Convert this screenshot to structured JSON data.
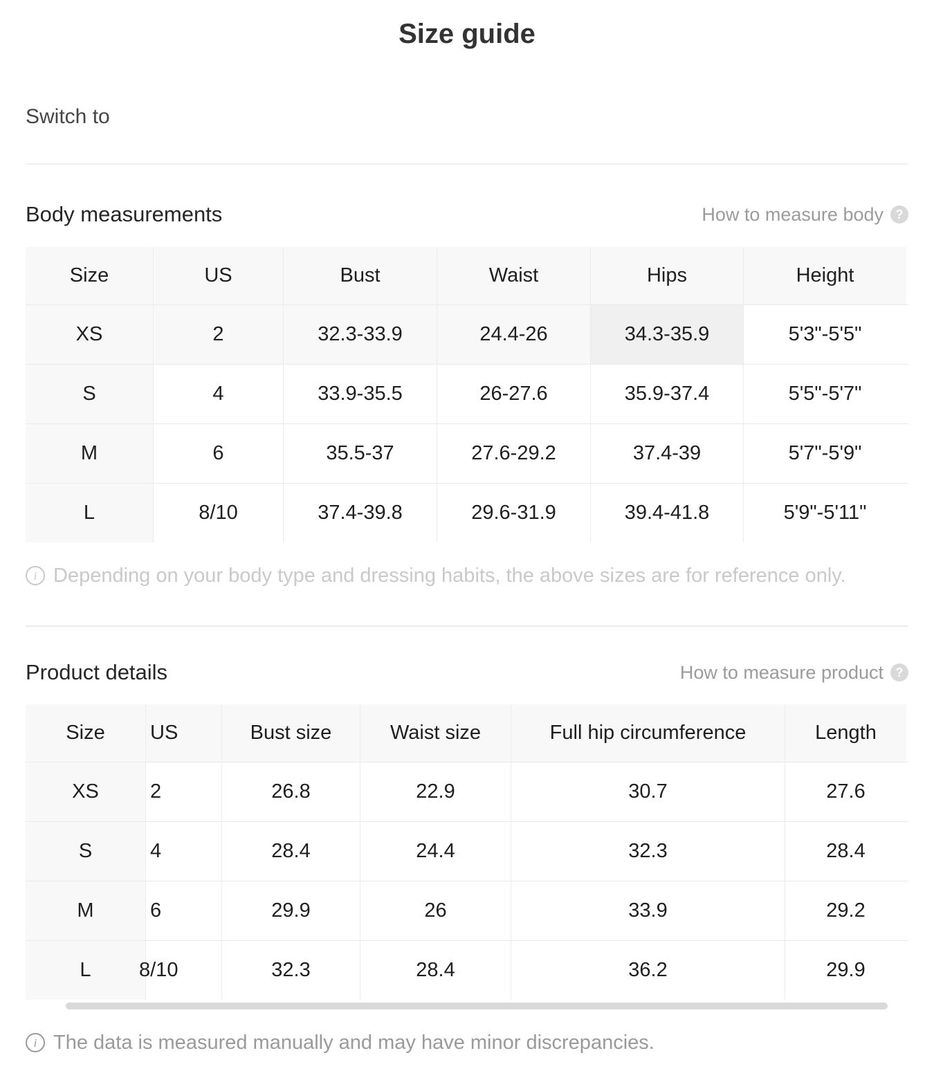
{
  "page": {
    "title": "Size guide",
    "switch_label": "Switch to"
  },
  "icons": {
    "help": "?",
    "info": "i"
  },
  "colors": {
    "row_highlight": "#f8f8f8",
    "cell_highlight": "#f0f0f0",
    "header_bg": "#f8f8f8",
    "scrollbar_thumb": "#d9d9d9",
    "help_text": "#9b9b9b",
    "note_light": "#c9c9c9",
    "note_dark": "#9a9a9a"
  },
  "body_section": {
    "title": "Body measurements",
    "help_label": "How to measure body",
    "table": {
      "columns": [
        "Size",
        "US",
        "Bust",
        "Waist",
        "Hips",
        "Height"
      ],
      "rows": [
        {
          "size": "XS",
          "us": "2",
          "bust": "32.3-33.9",
          "waist": "24.4-26",
          "hips": "34.3-35.9",
          "height": "5'3\"-5'5\""
        },
        {
          "size": "S",
          "us": "4",
          "bust": "33.9-35.5",
          "waist": "26-27.6",
          "hips": "35.9-37.4",
          "height": "5'5\"-5'7\""
        },
        {
          "size": "M",
          "us": "6",
          "bust": "35.5-37",
          "waist": "27.6-29.2",
          "hips": "37.4-39",
          "height": "5'7\"-5'9\""
        },
        {
          "size": "L",
          "us": "8/10",
          "bust": "37.4-39.8",
          "waist": "29.6-31.9",
          "hips": "39.4-41.8",
          "height": "5'9\"-5'11\""
        }
      ]
    },
    "note": "Depending on your body type and dressing habits, the above sizes are for reference only."
  },
  "product_section": {
    "title": "Product details",
    "help_label": "How to measure product",
    "table": {
      "columns": [
        "Size",
        "US",
        "Bust size",
        "Waist size",
        "Full hip circumference",
        "Length"
      ],
      "rows": [
        {
          "size": "XS",
          "us": "2",
          "bust": "26.8",
          "waist": "22.9",
          "hip": "30.7",
          "length": "27.6"
        },
        {
          "size": "S",
          "us": "4",
          "bust": "28.4",
          "waist": "24.4",
          "hip": "32.3",
          "length": "28.4"
        },
        {
          "size": "M",
          "us": "6",
          "bust": "29.9",
          "waist": "26",
          "hip": "33.9",
          "length": "29.2"
        },
        {
          "size": "L",
          "us": "8/10",
          "bust": "32.3",
          "waist": "28.4",
          "hip": "36.2",
          "length": "29.9"
        }
      ]
    },
    "note": "The data is measured manually and may have minor discrepancies."
  }
}
